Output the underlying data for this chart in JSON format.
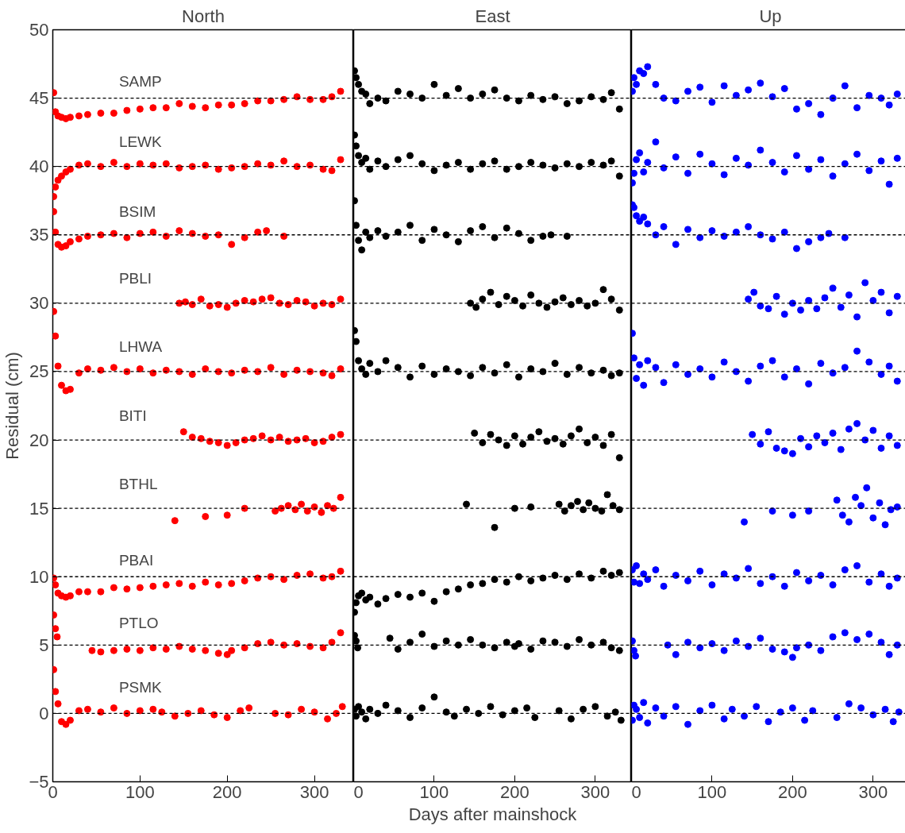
{
  "chart_data": [
    {
      "type": "scatter",
      "title": "North",
      "ylabel": "Residual (cm)",
      "marker": "circle",
      "xlim": [
        0,
        345
      ],
      "xticks": [
        0,
        100,
        200,
        300
      ],
      "ylim": [
        -5,
        50
      ],
      "yticks": [
        -5,
        0,
        5,
        10,
        15,
        20,
        25,
        30,
        35,
        40,
        45,
        50
      ],
      "ref_lines": [
        {
          "axis": "y",
          "value": 45,
          "color": "#000000",
          "line_style": "dashed"
        },
        {
          "axis": "y",
          "value": 40,
          "color": "#000000",
          "line_style": "dashed"
        },
        {
          "axis": "y",
          "value": 35,
          "color": "#000000",
          "line_style": "dashed"
        },
        {
          "axis": "y",
          "value": 30,
          "color": "#000000",
          "line_style": "dashed"
        },
        {
          "axis": "y",
          "value": 25,
          "color": "#000000",
          "line_style": "dashed"
        },
        {
          "axis": "y",
          "value": 20,
          "color": "#000000",
          "line_style": "dashed"
        },
        {
          "axis": "y",
          "value": 15,
          "color": "#000000",
          "line_style": "dashed"
        },
        {
          "axis": "y",
          "value": 10,
          "color": "#000000",
          "line_style": "dashed"
        },
        {
          "axis": "y",
          "value": 5,
          "color": "#000000",
          "line_style": "dashed"
        },
        {
          "axis": "y",
          "value": 0,
          "color": "#000000",
          "line_style": "dashed"
        }
      ],
      "series": [
        {
          "name": "SAMP",
          "color": "#ff0000",
          "x": [
            1,
            3,
            6,
            10,
            15,
            20,
            30,
            40,
            55,
            70,
            85,
            100,
            115,
            130,
            145,
            160,
            175,
            190,
            205,
            220,
            235,
            250,
            265,
            280,
            295,
            310,
            320,
            330
          ],
          "values": [
            45.4,
            44.0,
            43.7,
            43.6,
            43.5,
            43.6,
            43.7,
            43.8,
            43.9,
            43.9,
            44.1,
            44.2,
            44.3,
            44.3,
            44.6,
            44.4,
            44.3,
            44.5,
            44.5,
            44.6,
            44.8,
            44.8,
            44.9,
            45.1,
            44.9,
            44.9,
            45.1,
            45.5
          ]
        },
        {
          "name": "LEWK",
          "color": "#ff0000",
          "x": [
            1,
            3,
            6,
            10,
            15,
            20,
            30,
            40,
            55,
            70,
            85,
            100,
            115,
            130,
            145,
            160,
            175,
            190,
            205,
            220,
            235,
            250,
            265,
            280,
            295,
            310,
            320,
            330
          ],
          "values": [
            37.8,
            38.5,
            39.0,
            39.3,
            39.6,
            39.8,
            40.1,
            40.2,
            40.0,
            40.3,
            40.0,
            40.2,
            40.1,
            40.2,
            39.9,
            40.0,
            40.1,
            39.8,
            39.9,
            40.0,
            40.2,
            40.1,
            40.4,
            40.0,
            40.1,
            39.8,
            39.7,
            40.5
          ]
        },
        {
          "name": "BSIM",
          "color": "#ff0000",
          "x": [
            1,
            3,
            6,
            10,
            15,
            20,
            30,
            40,
            55,
            70,
            85,
            100,
            115,
            130,
            145,
            160,
            175,
            190,
            205,
            220,
            235,
            245,
            265
          ],
          "values": [
            36.7,
            35.2,
            34.3,
            34.1,
            34.2,
            34.5,
            34.7,
            34.9,
            35.0,
            35.1,
            34.8,
            35.1,
            35.2,
            34.9,
            35.3,
            35.1,
            34.9,
            35.0,
            34.3,
            34.8,
            35.2,
            35.3,
            34.9
          ]
        },
        {
          "name": "PBLI",
          "color": "#ff0000",
          "x": [
            145,
            152,
            160,
            170,
            180,
            190,
            200,
            210,
            220,
            230,
            240,
            250,
            260,
            270,
            280,
            290,
            300,
            310,
            320,
            330
          ],
          "values": [
            30.0,
            30.1,
            29.9,
            30.3,
            29.8,
            29.9,
            29.7,
            30.0,
            30.2,
            30.1,
            30.3,
            30.4,
            30.0,
            29.9,
            30.2,
            30.1,
            29.8,
            30.0,
            29.9,
            30.3
          ]
        },
        {
          "name": "LHWA",
          "color": "#ff0000",
          "x": [
            1,
            3,
            6,
            10,
            15,
            20,
            30,
            40,
            55,
            70,
            85,
            100,
            115,
            130,
            145,
            160,
            175,
            190,
            205,
            220,
            235,
            250,
            265,
            280,
            295,
            310,
            320,
            330
          ],
          "values": [
            29.4,
            27.6,
            25.4,
            24.0,
            23.6,
            23.7,
            24.9,
            25.2,
            25.1,
            25.3,
            25.0,
            25.2,
            24.9,
            25.1,
            25.0,
            24.8,
            25.2,
            25.0,
            24.9,
            25.1,
            25.0,
            25.3,
            24.8,
            25.1,
            25.0,
            24.9,
            24.7,
            25.2
          ]
        },
        {
          "name": "BITI",
          "color": "#ff0000",
          "x": [
            150,
            160,
            170,
            180,
            190,
            200,
            210,
            220,
            230,
            240,
            250,
            260,
            270,
            280,
            290,
            300,
            310,
            320,
            330
          ],
          "values": [
            20.6,
            20.2,
            20.1,
            19.9,
            19.8,
            19.6,
            19.8,
            20.0,
            20.1,
            20.3,
            20.0,
            20.2,
            19.9,
            20.0,
            20.1,
            19.8,
            19.9,
            20.2,
            20.4
          ]
        },
        {
          "name": "BTHL",
          "color": "#ff0000",
          "x": [
            140,
            175,
            200,
            220,
            255,
            262,
            270,
            278,
            285,
            292,
            300,
            308,
            315,
            322,
            330
          ],
          "values": [
            14.1,
            14.4,
            14.5,
            15.0,
            14.8,
            15.0,
            15.2,
            14.9,
            15.3,
            14.8,
            15.1,
            14.7,
            15.2,
            15.0,
            15.8
          ]
        },
        {
          "name": "PBAI",
          "color": "#ff0000",
          "x": [
            1,
            3,
            6,
            10,
            15,
            20,
            30,
            40,
            55,
            70,
            85,
            100,
            115,
            130,
            145,
            160,
            175,
            190,
            205,
            220,
            235,
            250,
            265,
            280,
            295,
            310,
            320,
            330
          ],
          "values": [
            9.9,
            9.4,
            8.8,
            8.6,
            8.5,
            8.6,
            8.9,
            8.9,
            8.9,
            9.2,
            9.1,
            9.2,
            9.3,
            9.4,
            9.5,
            9.3,
            9.6,
            9.4,
            9.5,
            9.7,
            9.9,
            10.0,
            9.8,
            10.1,
            10.2,
            9.9,
            10.0,
            10.4
          ]
        },
        {
          "name": "PTLO",
          "color": "#ff0000",
          "x": [
            1,
            3,
            5,
            45,
            55,
            70,
            85,
            100,
            115,
            130,
            145,
            160,
            175,
            190,
            200,
            205,
            220,
            235,
            250,
            265,
            280,
            295,
            310,
            320,
            330
          ],
          "values": [
            7.2,
            6.2,
            5.6,
            4.6,
            4.5,
            4.6,
            4.7,
            4.6,
            4.8,
            4.7,
            4.9,
            4.7,
            4.6,
            4.4,
            4.3,
            4.6,
            4.8,
            5.1,
            5.2,
            5.0,
            5.1,
            4.9,
            4.8,
            5.2,
            5.9
          ]
        },
        {
          "name": "PSMK",
          "color": "#ff0000",
          "x": [
            1,
            3,
            6,
            10,
            15,
            20,
            30,
            40,
            55,
            70,
            85,
            100,
            115,
            125,
            140,
            155,
            170,
            185,
            200,
            215,
            225,
            255,
            270,
            285,
            300,
            315,
            325,
            332
          ],
          "values": [
            3.2,
            1.6,
            0.7,
            -0.6,
            -0.8,
            -0.5,
            0.2,
            0.3,
            0.1,
            0.4,
            0.0,
            0.2,
            0.3,
            0.1,
            -0.2,
            0.0,
            0.2,
            -0.1,
            -0.3,
            0.2,
            0.4,
            0.0,
            -0.1,
            0.3,
            0.1,
            -0.4,
            0.0,
            0.5
          ]
        }
      ]
    },
    {
      "type": "scatter",
      "title": "East",
      "xlabel": "Days after mainshock",
      "marker": "circle",
      "tick_labels": "x",
      "xlim": [
        0,
        345
      ],
      "xticks": [
        0,
        100,
        200,
        300
      ],
      "ylim": [
        -5,
        50
      ],
      "yticks": [
        -5,
        0,
        5,
        10,
        15,
        20,
        25,
        30,
        35,
        40,
        45,
        50
      ],
      "ref_lines": [
        {
          "axis": "y",
          "value": 45,
          "color": "#000000",
          "line_style": "dashed"
        },
        {
          "axis": "y",
          "value": 40,
          "color": "#000000",
          "line_style": "dashed"
        },
        {
          "axis": "y",
          "value": 35,
          "color": "#000000",
          "line_style": "dashed"
        },
        {
          "axis": "y",
          "value": 30,
          "color": "#000000",
          "line_style": "dashed"
        },
        {
          "axis": "y",
          "value": 25,
          "color": "#000000",
          "line_style": "dashed"
        },
        {
          "axis": "y",
          "value": 20,
          "color": "#000000",
          "line_style": "dashed"
        },
        {
          "axis": "y",
          "value": 15,
          "color": "#000000",
          "line_style": "dashed"
        },
        {
          "axis": "y",
          "value": 10,
          "color": "#000000",
          "line_style": "dashed"
        },
        {
          "axis": "y",
          "value": 5,
          "color": "#000000",
          "line_style": "dashed"
        },
        {
          "axis": "y",
          "value": 0,
          "color": "#000000",
          "line_style": "dashed"
        }
      ],
      "series": [
        {
          "color": "#000000",
          "x": [
            1,
            3,
            6,
            10,
            15,
            20,
            30,
            40,
            55,
            70,
            85,
            100,
            115,
            130,
            145,
            160,
            175,
            190,
            205,
            220,
            235,
            250,
            265,
            280,
            295,
            310,
            320,
            330
          ],
          "values": [
            47.0,
            46.5,
            46.0,
            45.5,
            45.3,
            44.6,
            45.0,
            44.8,
            45.5,
            45.3,
            45.0,
            46.0,
            45.2,
            45.7,
            45.0,
            45.3,
            45.6,
            45.0,
            44.8,
            45.2,
            44.9,
            45.1,
            44.6,
            44.8,
            45.1,
            44.9,
            45.4,
            44.2
          ]
        },
        {
          "color": "#000000",
          "x": [
            1,
            3,
            6,
            10,
            15,
            20,
            30,
            40,
            55,
            70,
            85,
            100,
            115,
            130,
            145,
            160,
            175,
            190,
            205,
            220,
            235,
            250,
            265,
            280,
            295,
            310,
            320,
            330
          ],
          "values": [
            42.3,
            41.5,
            40.8,
            40.3,
            40.6,
            39.8,
            40.4,
            40.0,
            40.5,
            40.8,
            40.2,
            39.7,
            40.1,
            40.3,
            39.8,
            40.2,
            40.4,
            39.8,
            40.0,
            40.3,
            40.1,
            39.9,
            40.2,
            40.0,
            40.3,
            40.1,
            40.4,
            39.3
          ]
        },
        {
          "color": "#000000",
          "x": [
            1,
            3,
            6,
            10,
            15,
            20,
            30,
            40,
            55,
            70,
            85,
            100,
            115,
            130,
            145,
            160,
            175,
            190,
            205,
            220,
            235,
            245,
            265
          ],
          "values": [
            37.5,
            35.7,
            34.6,
            33.9,
            35.2,
            34.8,
            35.3,
            34.9,
            35.2,
            35.7,
            34.6,
            35.4,
            35.0,
            34.5,
            35.3,
            35.6,
            34.8,
            35.5,
            35.1,
            34.6,
            34.9,
            35.0,
            34.9
          ]
        },
        {
          "color": "#000000",
          "x": [
            145,
            152,
            160,
            170,
            180,
            190,
            200,
            210,
            220,
            230,
            240,
            250,
            260,
            270,
            280,
            290,
            300,
            310,
            320,
            330
          ],
          "values": [
            30.0,
            29.7,
            30.3,
            30.8,
            29.9,
            30.5,
            30.2,
            29.8,
            30.6,
            30.0,
            29.7,
            30.1,
            30.4,
            29.9,
            30.2,
            29.8,
            30.0,
            31.0,
            30.3,
            29.5
          ]
        },
        {
          "color": "#000000",
          "x": [
            1,
            3,
            6,
            10,
            15,
            20,
            30,
            40,
            55,
            70,
            85,
            100,
            115,
            130,
            145,
            160,
            175,
            190,
            205,
            220,
            235,
            250,
            265,
            280,
            295,
            310,
            320,
            330
          ],
          "values": [
            28.0,
            27.2,
            25.8,
            25.2,
            24.8,
            25.6,
            25.0,
            25.8,
            25.3,
            24.6,
            25.4,
            24.8,
            25.2,
            25.0,
            24.7,
            25.3,
            24.9,
            25.5,
            24.6,
            25.2,
            25.0,
            25.6,
            24.8,
            25.3,
            24.9,
            25.1,
            24.7,
            24.9
          ]
        },
        {
          "color": "#000000",
          "x": [
            150,
            160,
            170,
            180,
            190,
            200,
            210,
            220,
            230,
            240,
            250,
            260,
            270,
            280,
            290,
            300,
            310,
            320,
            330
          ],
          "values": [
            20.5,
            19.8,
            20.4,
            20.0,
            19.6,
            20.3,
            19.7,
            20.2,
            20.6,
            19.9,
            20.1,
            19.7,
            20.3,
            20.8,
            19.8,
            20.2,
            19.6,
            20.4,
            18.7
          ]
        },
        {
          "color": "#000000",
          "x": [
            140,
            175,
            200,
            220,
            255,
            262,
            270,
            278,
            285,
            292,
            300,
            308,
            315,
            322,
            330
          ],
          "values": [
            15.3,
            13.6,
            15.0,
            15.1,
            15.3,
            14.8,
            15.2,
            15.5,
            14.9,
            15.4,
            15.0,
            14.8,
            16.0,
            15.2,
            14.9
          ]
        },
        {
          "color": "#000000",
          "x": [
            1,
            3,
            6,
            10,
            15,
            20,
            30,
            40,
            55,
            70,
            85,
            100,
            115,
            130,
            145,
            160,
            175,
            190,
            205,
            220,
            235,
            250,
            265,
            280,
            295,
            310,
            320,
            330
          ],
          "values": [
            7.4,
            8.1,
            8.6,
            8.8,
            8.3,
            8.5,
            8.0,
            8.4,
            8.7,
            8.5,
            8.8,
            8.2,
            8.9,
            9.1,
            9.4,
            9.5,
            9.8,
            9.6,
            10.0,
            9.7,
            9.9,
            10.1,
            9.8,
            10.2,
            9.9,
            10.4,
            10.1,
            10.3
          ]
        },
        {
          "color": "#000000",
          "x": [
            1,
            3,
            5,
            45,
            55,
            70,
            85,
            100,
            115,
            130,
            145,
            160,
            175,
            190,
            200,
            205,
            220,
            235,
            250,
            265,
            280,
            295,
            310,
            320,
            330
          ],
          "values": [
            5.7,
            5.3,
            4.8,
            5.5,
            4.7,
            5.2,
            5.8,
            4.9,
            5.3,
            5.0,
            5.4,
            5.0,
            4.8,
            5.2,
            4.9,
            5.1,
            4.7,
            5.3,
            5.2,
            4.9,
            5.4,
            5.0,
            5.2,
            4.8,
            4.6
          ]
        },
        {
          "color": "#000000",
          "x": [
            1,
            3,
            6,
            10,
            15,
            20,
            30,
            40,
            55,
            70,
            85,
            100,
            115,
            125,
            140,
            155,
            170,
            185,
            200,
            215,
            225,
            255,
            270,
            285,
            300,
            315,
            325,
            332
          ],
          "values": [
            0.3,
            -0.2,
            0.5,
            0.1,
            -0.4,
            0.3,
            0.0,
            0.6,
            0.2,
            -0.3,
            0.4,
            1.2,
            0.1,
            -0.2,
            0.3,
            0.0,
            0.5,
            -0.1,
            0.2,
            0.4,
            -0.3,
            0.2,
            -0.4,
            0.3,
            0.5,
            -0.2,
            0.1,
            -0.5
          ]
        }
      ]
    },
    {
      "type": "scatter",
      "title": "Up",
      "marker": "circle",
      "tick_labels": "x",
      "xlim": [
        0,
        345
      ],
      "xticks": [
        0,
        100,
        200,
        300
      ],
      "ylim": [
        -5,
        50
      ],
      "yticks": [
        -5,
        0,
        5,
        10,
        15,
        20,
        25,
        30,
        35,
        40,
        45,
        50
      ],
      "ref_lines": [
        {
          "axis": "y",
          "value": 45,
          "color": "#000000",
          "line_style": "dashed"
        },
        {
          "axis": "y",
          "value": 40,
          "color": "#000000",
          "line_style": "dashed"
        },
        {
          "axis": "y",
          "value": 35,
          "color": "#000000",
          "line_style": "dashed"
        },
        {
          "axis": "y",
          "value": 30,
          "color": "#000000",
          "line_style": "dashed"
        },
        {
          "axis": "y",
          "value": 25,
          "color": "#000000",
          "line_style": "dashed"
        },
        {
          "axis": "y",
          "value": 20,
          "color": "#000000",
          "line_style": "dashed"
        },
        {
          "axis": "y",
          "value": 15,
          "color": "#000000",
          "line_style": "dashed"
        },
        {
          "axis": "y",
          "value": 10,
          "color": "#000000",
          "line_style": "dashed"
        },
        {
          "axis": "y",
          "value": 5,
          "color": "#000000",
          "line_style": "dashed"
        },
        {
          "axis": "y",
          "value": 0,
          "color": "#000000",
          "line_style": "dashed"
        }
      ],
      "series": [
        {
          "color": "#0000ff",
          "x": [
            1,
            3,
            6,
            10,
            15,
            20,
            30,
            40,
            55,
            70,
            85,
            100,
            115,
            130,
            145,
            160,
            175,
            190,
            205,
            220,
            235,
            250,
            265,
            280,
            295,
            310,
            320,
            330
          ],
          "values": [
            45.5,
            46.5,
            46.0,
            47.0,
            46.8,
            47.3,
            46.0,
            45.0,
            44.8,
            45.5,
            45.8,
            44.7,
            45.9,
            45.2,
            45.6,
            46.1,
            45.1,
            45.7,
            44.2,
            44.6,
            43.8,
            45.0,
            45.9,
            44.3,
            45.2,
            45.0,
            44.5,
            45.3
          ]
        },
        {
          "color": "#0000ff",
          "x": [
            1,
            3,
            6,
            10,
            15,
            20,
            30,
            40,
            55,
            70,
            85,
            100,
            115,
            130,
            145,
            160,
            175,
            190,
            205,
            220,
            235,
            250,
            265,
            280,
            295,
            310,
            320,
            330
          ],
          "values": [
            38.8,
            39.5,
            40.5,
            41.0,
            39.6,
            40.3,
            41.8,
            39.9,
            40.7,
            39.5,
            40.9,
            40.2,
            39.4,
            40.6,
            40.1,
            41.2,
            40.3,
            39.6,
            40.8,
            39.8,
            40.5,
            39.3,
            40.2,
            40.9,
            39.7,
            40.4,
            38.7,
            40.6
          ]
        },
        {
          "color": "#0000ff",
          "x": [
            1,
            3,
            6,
            10,
            15,
            20,
            30,
            40,
            55,
            70,
            85,
            100,
            115,
            130,
            145,
            160,
            175,
            190,
            205,
            220,
            235,
            245,
            265
          ],
          "values": [
            37.2,
            37.0,
            36.4,
            36.0,
            36.3,
            35.8,
            35.0,
            35.6,
            34.3,
            35.4,
            34.8,
            35.3,
            34.9,
            35.2,
            35.6,
            35.0,
            34.7,
            35.2,
            34.0,
            34.5,
            34.8,
            35.1,
            34.8
          ]
        },
        {
          "color": "#0000ff",
          "x": [
            145,
            152,
            160,
            170,
            180,
            190,
            200,
            210,
            220,
            230,
            240,
            250,
            260,
            270,
            280,
            290,
            300,
            310,
            320,
            330
          ],
          "values": [
            30.3,
            30.8,
            29.8,
            29.6,
            30.5,
            29.2,
            30.0,
            29.5,
            30.2,
            29.6,
            30.4,
            31.1,
            29.7,
            30.6,
            29.0,
            31.5,
            30.2,
            30.8,
            29.3,
            30.5
          ]
        },
        {
          "color": "#0000ff",
          "x": [
            1,
            3,
            6,
            10,
            15,
            20,
            30,
            40,
            55,
            70,
            85,
            100,
            115,
            130,
            145,
            160,
            175,
            190,
            205,
            220,
            235,
            250,
            265,
            280,
            295,
            310,
            320,
            330
          ],
          "values": [
            27.8,
            26.0,
            24.5,
            25.5,
            24.0,
            25.8,
            25.3,
            24.2,
            25.5,
            24.8,
            25.2,
            24.6,
            25.7,
            25.0,
            24.3,
            25.4,
            25.8,
            24.6,
            25.2,
            24.1,
            25.6,
            24.9,
            25.3,
            26.5,
            25.7,
            24.8,
            25.4,
            24.3
          ]
        },
        {
          "color": "#0000ff",
          "x": [
            150,
            160,
            170,
            180,
            190,
            200,
            210,
            220,
            230,
            240,
            250,
            260,
            270,
            280,
            290,
            300,
            310,
            320,
            330
          ],
          "values": [
            20.4,
            19.7,
            20.6,
            19.4,
            19.2,
            19.0,
            20.1,
            19.5,
            20.3,
            19.8,
            20.5,
            19.3,
            20.8,
            21.2,
            20.0,
            20.7,
            19.4,
            20.3,
            19.6
          ]
        },
        {
          "color": "#0000ff",
          "x": [
            140,
            175,
            200,
            220,
            255,
            262,
            270,
            278,
            285,
            292,
            300,
            308,
            315,
            322,
            330
          ],
          "values": [
            14.0,
            14.8,
            14.5,
            14.8,
            15.6,
            14.5,
            14.0,
            15.8,
            15.2,
            16.5,
            14.3,
            15.4,
            13.8,
            14.9,
            15.1
          ]
        },
        {
          "color": "#0000ff",
          "x": [
            1,
            3,
            6,
            10,
            15,
            20,
            30,
            40,
            55,
            70,
            85,
            100,
            115,
            130,
            145,
            160,
            175,
            190,
            205,
            220,
            235,
            250,
            265,
            280,
            295,
            310,
            320,
            330
          ],
          "values": [
            10.5,
            9.6,
            10.8,
            9.5,
            10.2,
            9.8,
            10.5,
            9.3,
            10.1,
            9.7,
            10.4,
            9.4,
            10.2,
            9.9,
            10.6,
            9.5,
            10.0,
            9.3,
            10.3,
            9.7,
            10.1,
            9.4,
            10.5,
            10.8,
            9.6,
            10.2,
            9.3,
            9.9
          ]
        },
        {
          "color": "#0000ff",
          "x": [
            1,
            3,
            5,
            45,
            55,
            70,
            85,
            100,
            115,
            130,
            145,
            160,
            175,
            190,
            200,
            205,
            220,
            235,
            250,
            265,
            280,
            295,
            310,
            320,
            330
          ],
          "values": [
            5.3,
            4.6,
            4.2,
            5.0,
            4.3,
            5.2,
            4.8,
            5.1,
            4.6,
            5.3,
            4.9,
            5.5,
            4.7,
            4.5,
            4.1,
            4.8,
            5.0,
            4.6,
            5.6,
            5.9,
            5.4,
            5.8,
            5.2,
            4.3,
            5.0
          ]
        },
        {
          "color": "#0000ff",
          "x": [
            1,
            3,
            6,
            10,
            15,
            20,
            30,
            40,
            55,
            70,
            85,
            100,
            115,
            125,
            140,
            155,
            170,
            185,
            200,
            215,
            225,
            255,
            270,
            285,
            300,
            315,
            325,
            332
          ],
          "values": [
            -0.5,
            0.6,
            0.3,
            -0.3,
            0.8,
            -0.7,
            0.4,
            -0.2,
            0.5,
            -0.8,
            0.2,
            0.6,
            -0.4,
            0.3,
            -0.2,
            0.5,
            -0.6,
            0.1,
            0.4,
            -0.5,
            0.2,
            -0.3,
            0.7,
            0.4,
            -0.1,
            0.3,
            -0.6,
            0.1
          ]
        }
      ]
    }
  ]
}
